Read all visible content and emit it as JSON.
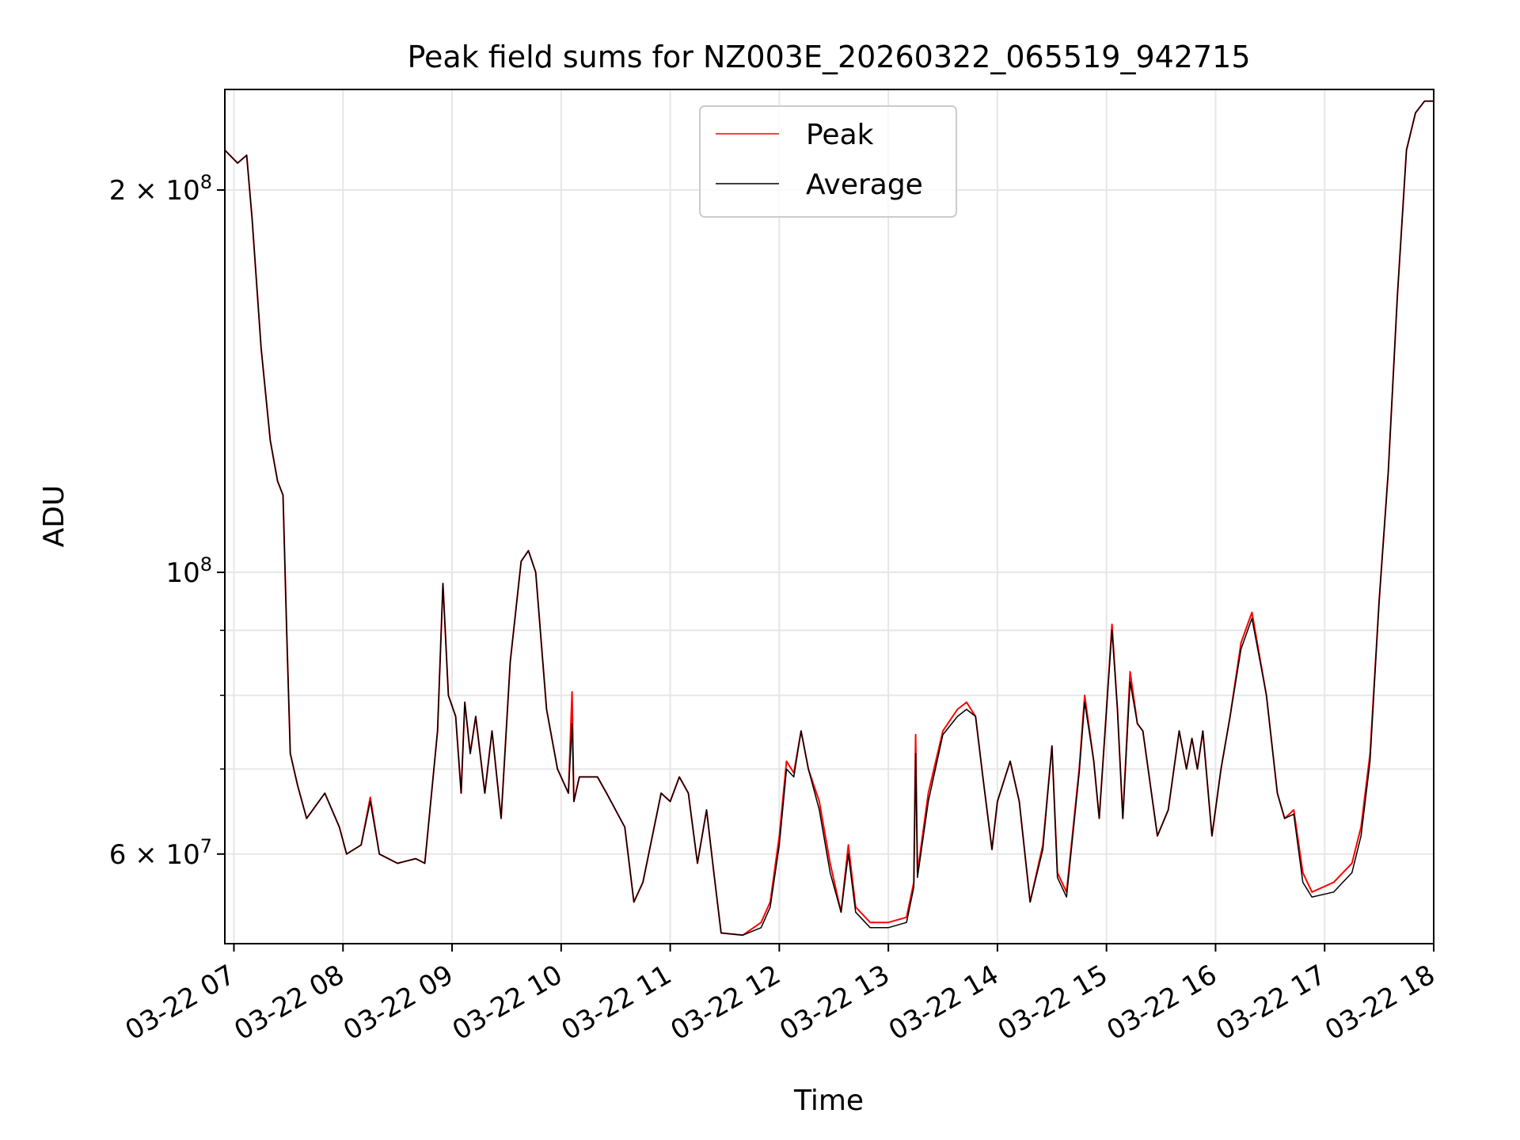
{
  "chart_data": {
    "type": "line",
    "title": "Peak field sums for NZ003E_20260322_065519_942715",
    "xlabel": "Time",
    "ylabel": "ADU",
    "y_scale": "log",
    "ylim": [
      51000000,
      240000000
    ],
    "xlim": [
      "2026-03-22 06:55",
      "2026-03-22 18:00"
    ],
    "grid": true,
    "legend_position": "upper center",
    "x_ticks": [
      {
        "t": "2026-03-22 07:00",
        "label": "03-22 07"
      },
      {
        "t": "2026-03-22 08:00",
        "label": "03-22 08"
      },
      {
        "t": "2026-03-22 09:00",
        "label": "03-22 09"
      },
      {
        "t": "2026-03-22 10:00",
        "label": "03-22 10"
      },
      {
        "t": "2026-03-22 11:00",
        "label": "03-22 11"
      },
      {
        "t": "2026-03-22 12:00",
        "label": "03-22 12"
      },
      {
        "t": "2026-03-22 13:00",
        "label": "03-22 13"
      },
      {
        "t": "2026-03-22 14:00",
        "label": "03-22 14"
      },
      {
        "t": "2026-03-22 15:00",
        "label": "03-22 15"
      },
      {
        "t": "2026-03-22 16:00",
        "label": "03-22 16"
      },
      {
        "t": "2026-03-22 17:00",
        "label": "03-22 17"
      },
      {
        "t": "2026-03-22 18:00",
        "label": "03-22 18"
      }
    ],
    "y_ticks": [
      {
        "value": 60000000,
        "label_base": "6 × 10",
        "label_exp": "7"
      },
      {
        "value": 100000000,
        "label_base": "10",
        "label_exp": "8"
      },
      {
        "value": 200000000,
        "label_base": "2 × 10",
        "label_exp": "8"
      }
    ],
    "y_minor_ticks": [
      70000000,
      80000000,
      90000000
    ],
    "series": [
      {
        "name": "Peak",
        "color": "#ff0000",
        "points": [
          [
            "06:55",
            215000000
          ],
          [
            "07:02",
            210000000
          ],
          [
            "07:07",
            213000000
          ],
          [
            "07:10",
            190000000
          ],
          [
            "07:15",
            150000000
          ],
          [
            "07:20",
            127000000
          ],
          [
            "07:24",
            118000000
          ],
          [
            "07:27",
            115000000
          ],
          [
            "07:29",
            90000000
          ],
          [
            "07:31",
            72000000
          ],
          [
            "07:35",
            68000000
          ],
          [
            "07:40",
            64000000
          ],
          [
            "07:50",
            67000000
          ],
          [
            "07:58",
            63000000
          ],
          [
            "08:02",
            60000000
          ],
          [
            "08:10",
            61000000
          ],
          [
            "08:15",
            66500000
          ],
          [
            "08:20",
            60000000
          ],
          [
            "08:30",
            59000000
          ],
          [
            "08:40",
            59500000
          ],
          [
            "08:45",
            59000000
          ],
          [
            "08:52",
            75000000
          ],
          [
            "08:55",
            98000000
          ],
          [
            "08:58",
            80000000
          ],
          [
            "09:02",
            77000000
          ],
          [
            "09:05",
            67000000
          ],
          [
            "09:07",
            79000000
          ],
          [
            "09:10",
            72000000
          ],
          [
            "09:13",
            77000000
          ],
          [
            "09:18",
            67000000
          ],
          [
            "09:22",
            75000000
          ],
          [
            "09:27",
            64000000
          ],
          [
            "09:32",
            85000000
          ],
          [
            "09:38",
            102000000
          ],
          [
            "09:42",
            104000000
          ],
          [
            "09:46",
            100000000
          ],
          [
            "09:52",
            78000000
          ],
          [
            "09:58",
            70000000
          ],
          [
            "10:04",
            67000000
          ],
          [
            "10:06",
            80500000
          ],
          [
            "10:07",
            66000000
          ],
          [
            "10:10",
            69000000
          ],
          [
            "10:20",
            69000000
          ],
          [
            "10:25",
            67000000
          ],
          [
            "10:35",
            63000000
          ],
          [
            "10:40",
            55000000
          ],
          [
            "10:45",
            57000000
          ],
          [
            "10:55",
            67000000
          ],
          [
            "11:00",
            66000000
          ],
          [
            "11:05",
            69000000
          ],
          [
            "11:10",
            67000000
          ],
          [
            "11:15",
            59000000
          ],
          [
            "11:20",
            65000000
          ],
          [
            "11:24",
            58000000
          ],
          [
            "11:28",
            52000000
          ],
          [
            "11:40",
            51800000
          ],
          [
            "11:50",
            53000000
          ],
          [
            "11:55",
            55000000
          ],
          [
            "12:00",
            62000000
          ],
          [
            "12:04",
            71000000
          ],
          [
            "12:08",
            69500000
          ],
          [
            "12:12",
            75000000
          ],
          [
            "12:16",
            70000000
          ],
          [
            "12:22",
            66000000
          ],
          [
            "12:28",
            59000000
          ],
          [
            "12:34",
            54000000
          ],
          [
            "12:38",
            61000000
          ],
          [
            "12:42",
            54500000
          ],
          [
            "12:50",
            53000000
          ],
          [
            "13:00",
            53000000
          ],
          [
            "13:10",
            53500000
          ],
          [
            "13:14",
            57000000
          ],
          [
            "13:15",
            74500000
          ],
          [
            "13:16",
            58000000
          ],
          [
            "13:22",
            67000000
          ],
          [
            "13:30",
            75000000
          ],
          [
            "13:38",
            78000000
          ],
          [
            "13:43",
            79000000
          ],
          [
            "13:48",
            77000000
          ],
          [
            "13:52",
            69000000
          ],
          [
            "13:57",
            60500000
          ],
          [
            "14:00",
            66000000
          ],
          [
            "14:07",
            71000000
          ],
          [
            "14:12",
            66000000
          ],
          [
            "14:18",
            55000000
          ],
          [
            "14:25",
            61000000
          ],
          [
            "14:30",
            73000000
          ],
          [
            "14:33",
            58000000
          ],
          [
            "14:38",
            56000000
          ],
          [
            "14:45",
            70000000
          ],
          [
            "14:48",
            80000000
          ],
          [
            "14:53",
            71000000
          ],
          [
            "14:56",
            64000000
          ],
          [
            "15:00",
            78000000
          ],
          [
            "15:03",
            91000000
          ],
          [
            "15:06",
            78000000
          ],
          [
            "15:09",
            64000000
          ],
          [
            "15:13",
            83500000
          ],
          [
            "15:17",
            76000000
          ],
          [
            "15:20",
            75000000
          ],
          [
            "15:28",
            62000000
          ],
          [
            "15:34",
            65000000
          ],
          [
            "15:40",
            75000000
          ],
          [
            "15:44",
            70000000
          ],
          [
            "15:47",
            74000000
          ],
          [
            "15:50",
            70000000
          ],
          [
            "15:53",
            75000000
          ],
          [
            "15:58",
            62000000
          ],
          [
            "16:03",
            70000000
          ],
          [
            "16:08",
            77000000
          ],
          [
            "16:14",
            88000000
          ],
          [
            "16:20",
            93000000
          ],
          [
            "16:28",
            80000000
          ],
          [
            "16:34",
            67000000
          ],
          [
            "16:38",
            64000000
          ],
          [
            "16:43",
            65000000
          ],
          [
            "16:48",
            58000000
          ],
          [
            "16:53",
            56000000
          ],
          [
            "17:05",
            57000000
          ],
          [
            "17:10",
            58000000
          ],
          [
            "17:15",
            59000000
          ],
          [
            "17:20",
            63000000
          ],
          [
            "17:25",
            72000000
          ],
          [
            "17:30",
            95000000
          ],
          [
            "17:35",
            120000000
          ],
          [
            "17:40",
            165000000
          ],
          [
            "17:45",
            215000000
          ],
          [
            "17:50",
            230000000
          ],
          [
            "17:55",
            235000000
          ],
          [
            "18:00",
            235000000
          ]
        ]
      },
      {
        "name": "Average",
        "color": "#000000",
        "points": [
          [
            "06:55",
            215000000
          ],
          [
            "07:02",
            210000000
          ],
          [
            "07:07",
            213000000
          ],
          [
            "07:10",
            190000000
          ],
          [
            "07:15",
            150000000
          ],
          [
            "07:20",
            127000000
          ],
          [
            "07:24",
            118000000
          ],
          [
            "07:27",
            115000000
          ],
          [
            "07:29",
            90000000
          ],
          [
            "07:31",
            72000000
          ],
          [
            "07:35",
            68000000
          ],
          [
            "07:40",
            64000000
          ],
          [
            "07:50",
            67000000
          ],
          [
            "07:58",
            63000000
          ],
          [
            "08:02",
            60000000
          ],
          [
            "08:10",
            61000000
          ],
          [
            "08:15",
            66000000
          ],
          [
            "08:20",
            60000000
          ],
          [
            "08:30",
            59000000
          ],
          [
            "08:40",
            59500000
          ],
          [
            "08:45",
            59000000
          ],
          [
            "08:52",
            75000000
          ],
          [
            "08:55",
            98000000
          ],
          [
            "08:58",
            80000000
          ],
          [
            "09:02",
            77000000
          ],
          [
            "09:05",
            67000000
          ],
          [
            "09:07",
            79000000
          ],
          [
            "09:10",
            72000000
          ],
          [
            "09:13",
            77000000
          ],
          [
            "09:18",
            67000000
          ],
          [
            "09:22",
            75000000
          ],
          [
            "09:27",
            64000000
          ],
          [
            "09:32",
            85000000
          ],
          [
            "09:38",
            102000000
          ],
          [
            "09:42",
            104000000
          ],
          [
            "09:46",
            100000000
          ],
          [
            "09:52",
            78000000
          ],
          [
            "09:58",
            70000000
          ],
          [
            "10:04",
            67000000
          ],
          [
            "10:06",
            76000000
          ],
          [
            "10:07",
            66000000
          ],
          [
            "10:10",
            69000000
          ],
          [
            "10:20",
            69000000
          ],
          [
            "10:25",
            67000000
          ],
          [
            "10:35",
            63000000
          ],
          [
            "10:40",
            55000000
          ],
          [
            "10:45",
            57000000
          ],
          [
            "10:55",
            67000000
          ],
          [
            "11:00",
            66000000
          ],
          [
            "11:05",
            69000000
          ],
          [
            "11:10",
            67000000
          ],
          [
            "11:15",
            59000000
          ],
          [
            "11:20",
            65000000
          ],
          [
            "11:24",
            58000000
          ],
          [
            "11:28",
            52000000
          ],
          [
            "11:40",
            51800000
          ],
          [
            "11:50",
            52500000
          ],
          [
            "11:55",
            54500000
          ],
          [
            "12:00",
            61000000
          ],
          [
            "12:04",
            70000000
          ],
          [
            "12:08",
            69000000
          ],
          [
            "12:12",
            75000000
          ],
          [
            "12:16",
            70000000
          ],
          [
            "12:22",
            65000000
          ],
          [
            "12:28",
            58000000
          ],
          [
            "12:34",
            54000000
          ],
          [
            "12:38",
            60000000
          ],
          [
            "12:42",
            54000000
          ],
          [
            "12:50",
            52500000
          ],
          [
            "13:00",
            52500000
          ],
          [
            "13:10",
            53000000
          ],
          [
            "13:14",
            56500000
          ],
          [
            "13:15",
            72000000
          ],
          [
            "13:16",
            57500000
          ],
          [
            "13:22",
            66000000
          ],
          [
            "13:30",
            74500000
          ],
          [
            "13:38",
            77000000
          ],
          [
            "13:43",
            78000000
          ],
          [
            "13:48",
            77000000
          ],
          [
            "13:52",
            69000000
          ],
          [
            "13:57",
            60500000
          ],
          [
            "14:00",
            66000000
          ],
          [
            "14:07",
            71000000
          ],
          [
            "14:12",
            66000000
          ],
          [
            "14:18",
            55000000
          ],
          [
            "14:25",
            60500000
          ],
          [
            "14:30",
            73000000
          ],
          [
            "14:33",
            57500000
          ],
          [
            "14:38",
            55500000
          ],
          [
            "14:45",
            69500000
          ],
          [
            "14:48",
            79000000
          ],
          [
            "14:53",
            71000000
          ],
          [
            "14:56",
            64000000
          ],
          [
            "15:00",
            78000000
          ],
          [
            "15:03",
            90000000
          ],
          [
            "15:06",
            78000000
          ],
          [
            "15:09",
            64000000
          ],
          [
            "15:13",
            82000000
          ],
          [
            "15:17",
            76000000
          ],
          [
            "15:20",
            75000000
          ],
          [
            "15:28",
            62000000
          ],
          [
            "15:34",
            65000000
          ],
          [
            "15:40",
            75000000
          ],
          [
            "15:44",
            70000000
          ],
          [
            "15:47",
            74000000
          ],
          [
            "15:50",
            70000000
          ],
          [
            "15:53",
            75000000
          ],
          [
            "15:58",
            62000000
          ],
          [
            "16:03",
            70000000
          ],
          [
            "16:08",
            77000000
          ],
          [
            "16:14",
            87000000
          ],
          [
            "16:20",
            92000000
          ],
          [
            "16:28",
            80000000
          ],
          [
            "16:34",
            67000000
          ],
          [
            "16:38",
            64000000
          ],
          [
            "16:43",
            64500000
          ],
          [
            "16:48",
            57000000
          ],
          [
            "16:53",
            55500000
          ],
          [
            "17:05",
            56000000
          ],
          [
            "17:10",
            57000000
          ],
          [
            "17:15",
            58000000
          ],
          [
            "17:20",
            62000000
          ],
          [
            "17:25",
            71000000
          ],
          [
            "17:30",
            95000000
          ],
          [
            "17:35",
            120000000
          ],
          [
            "17:40",
            165000000
          ],
          [
            "17:45",
            215000000
          ],
          [
            "17:50",
            230000000
          ],
          [
            "17:55",
            235000000
          ],
          [
            "18:00",
            235000000
          ]
        ]
      }
    ]
  }
}
